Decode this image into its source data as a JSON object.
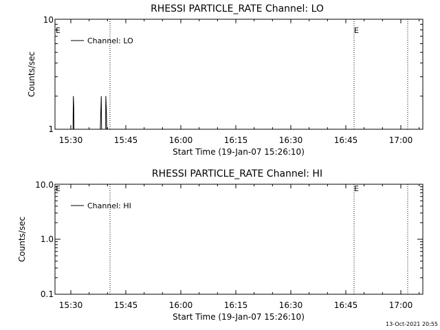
{
  "chart_data": [
    {
      "type": "line",
      "title": "RHESSI PARTICLE_RATE Channel: LO",
      "xlabel": "Start Time (19-Jan-07 15:26:10)",
      "ylabel": "Counts/sec",
      "x_ticks": [
        "15:30",
        "15:45",
        "16:00",
        "16:15",
        "16:30",
        "16:45",
        "17:00"
      ],
      "y_scale": "log",
      "ylim": [
        1,
        10
      ],
      "y_ticks": [
        "1",
        "10"
      ],
      "legend": {
        "label": "Channel: LO",
        "position": "top-left"
      },
      "series": [
        {
          "name": "Channel: LO",
          "x_minutes_after_1530": [
            0.4,
            0.45,
            0.6,
            0.7,
            0.8,
            0.85,
            8.0,
            8.05,
            8.3,
            8.4,
            9.5,
            9.55,
            9.7,
            9.8
          ],
          "values": [
            1,
            1,
            1,
            2,
            1.6,
            1,
            1,
            1,
            2,
            1,
            1,
            2,
            1.5,
            1
          ]
        }
      ],
      "markers": [
        {
          "label": "E",
          "time": "15:27:00"
        },
        {
          "label": "",
          "time": "15:40:30"
        },
        {
          "label": "E",
          "time": "16:47:00"
        },
        {
          "label": "",
          "time": "17:02:00"
        }
      ]
    },
    {
      "type": "line",
      "title": "RHESSI PARTICLE_RATE Channel: HI",
      "xlabel": "Start Time (19-Jan-07 15:26:10)",
      "ylabel": "Counts/sec",
      "x_ticks": [
        "15:30",
        "15:45",
        "16:00",
        "16:15",
        "16:30",
        "16:45",
        "17:00"
      ],
      "y_scale": "log",
      "ylim": [
        0.1,
        10
      ],
      "y_ticks": [
        "0.1",
        "1.0",
        "10.0"
      ],
      "legend": {
        "label": "Channel: HI",
        "position": "top-left"
      },
      "series": [
        {
          "name": "Channel: HI",
          "x_minutes_after_1530": [],
          "values": []
        }
      ],
      "markers": [
        {
          "label": "E",
          "time": "15:27:00"
        },
        {
          "label": "",
          "time": "15:40:30"
        },
        {
          "label": "E",
          "time": "16:47:00"
        },
        {
          "label": "",
          "time": "17:02:00"
        }
      ]
    }
  ],
  "footer": {
    "timestamp": "13-Oct-2021 20:55"
  }
}
